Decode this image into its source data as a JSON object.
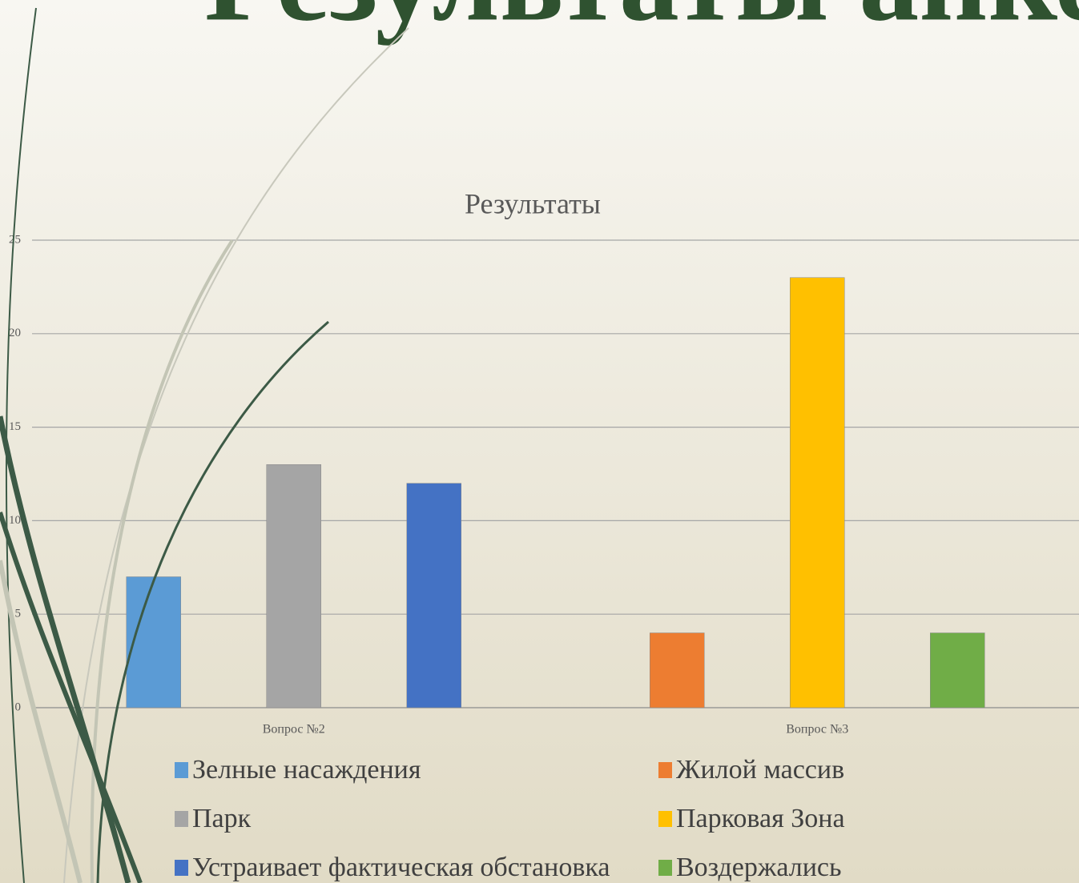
{
  "slide_title": "Результаты анкет",
  "chart_data": {
    "type": "bar",
    "title": "Результаты",
    "categories": [
      "Вопрос №2",
      "Вопрос №3"
    ],
    "series": [
      {
        "name": "Зелные насаждения",
        "color": "#5b9bd5",
        "values": [
          7,
          null
        ]
      },
      {
        "name": "Парк",
        "color": "#a5a5a5",
        "values": [
          13,
          null
        ]
      },
      {
        "name": "Устраивает фактическая обстановка",
        "color": "#4472c4",
        "values": [
          12,
          null
        ]
      },
      {
        "name": "Жилой массив",
        "color": "#ed7d31",
        "values": [
          null,
          4
        ]
      },
      {
        "name": "Парковая Зона",
        "color": "#ffc000",
        "values": [
          null,
          23
        ]
      },
      {
        "name": "Воздержались",
        "color": "#70ad47",
        "values": [
          null,
          4
        ]
      }
    ],
    "ylim": [
      0,
      25
    ],
    "yticks": [
      0,
      5,
      10,
      15,
      20,
      25
    ],
    "grid": true,
    "legend": "bottom"
  }
}
